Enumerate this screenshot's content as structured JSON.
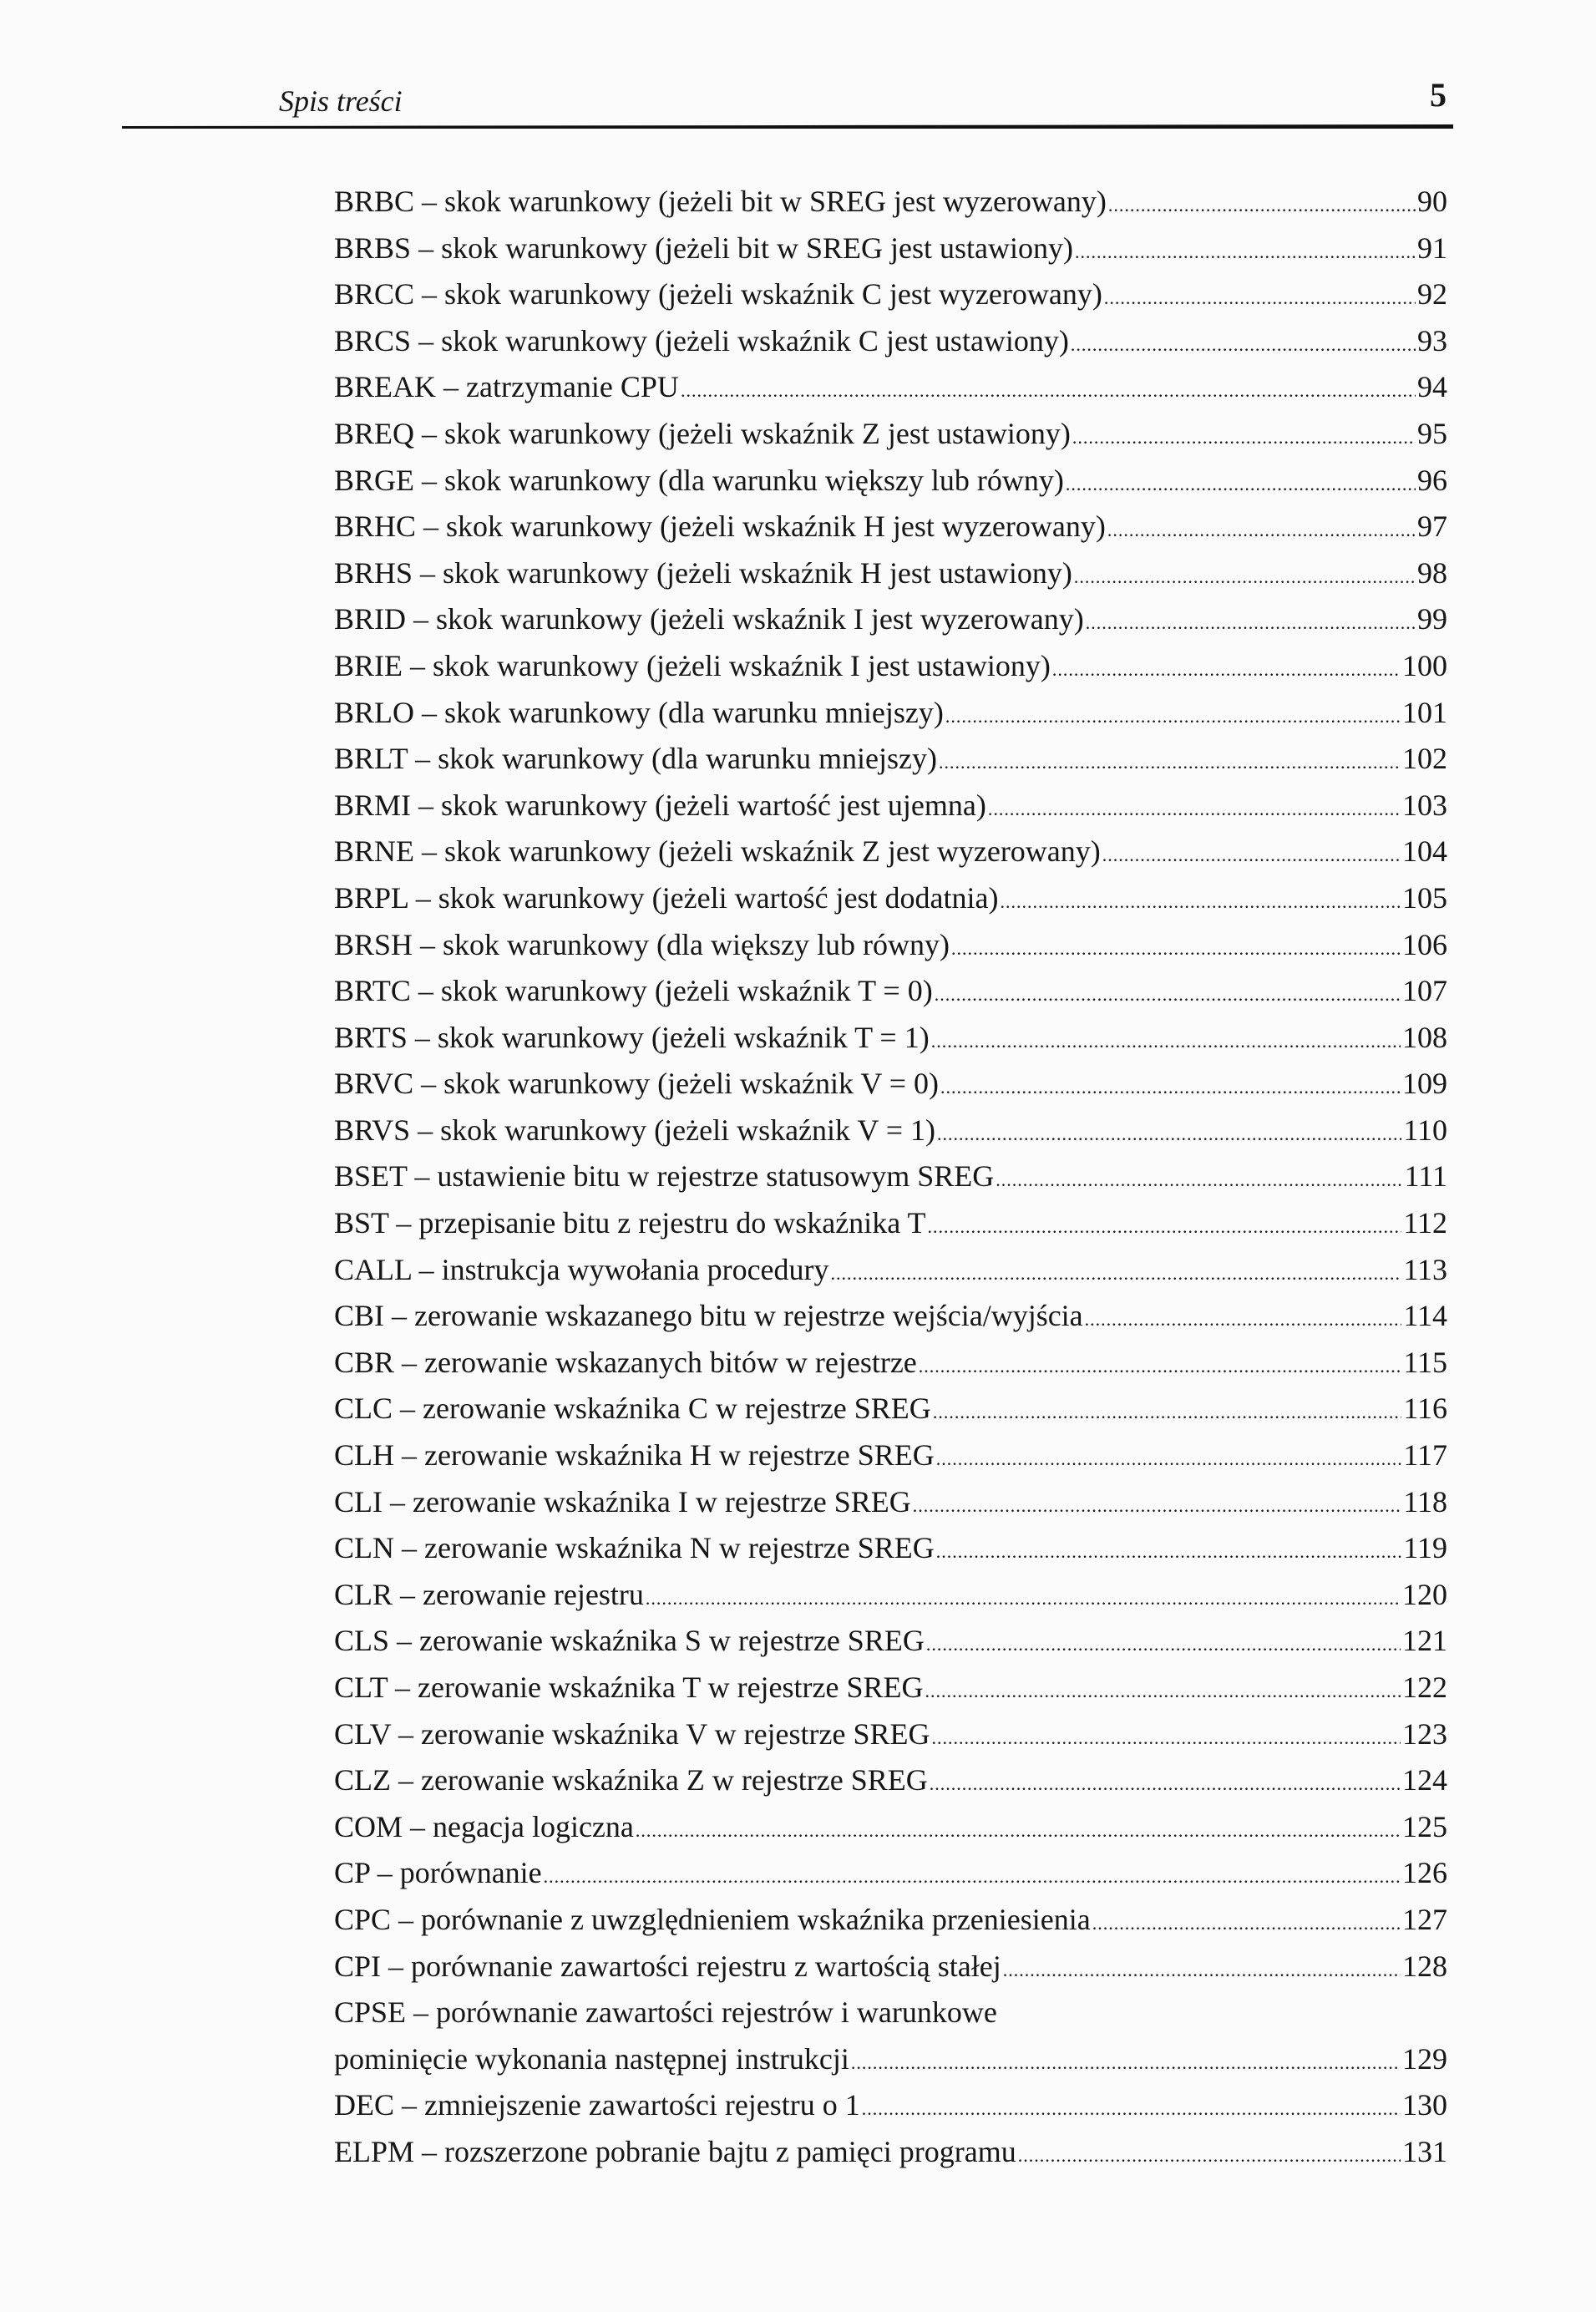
{
  "header": {
    "running_title": "Spis treści",
    "page_number": "5"
  },
  "toc": [
    {
      "code": "BRBC",
      "desc": "skok warunkowy (jeżeli bit w SREG jest wyzerowany)",
      "page": "90"
    },
    {
      "code": "BRBS",
      "desc": "skok warunkowy (jeżeli bit w SREG jest ustawiony)",
      "page": "91"
    },
    {
      "code": "BRCC",
      "desc": "skok warunkowy (jeżeli wskaźnik C jest wyzerowany)",
      "page": "92"
    },
    {
      "code": "BRCS",
      "desc": "skok warunkowy (jeżeli wskaźnik C jest ustawiony)",
      "page": "93"
    },
    {
      "code": "BREAK",
      "desc": "zatrzymanie CPU",
      "page": "94"
    },
    {
      "code": "BREQ",
      "desc": "skok warunkowy (jeżeli wskaźnik Z jest ustawiony)",
      "page": "95"
    },
    {
      "code": "BRGE",
      "desc": "skok warunkowy (dla warunku większy lub równy)",
      "page": "96"
    },
    {
      "code": "BRHC",
      "desc": "skok warunkowy (jeżeli wskaźnik H jest wyzerowany)",
      "page": "97"
    },
    {
      "code": "BRHS",
      "desc": "skok warunkowy (jeżeli wskaźnik H jest ustawiony)",
      "page": "98"
    },
    {
      "code": "BRID",
      "desc": "skok warunkowy (jeżeli wskaźnik I jest wyzerowany)",
      "page": "99"
    },
    {
      "code": "BRIE",
      "desc": "skok warunkowy (jeżeli wskaźnik I jest ustawiony)",
      "page": "100"
    },
    {
      "code": "BRLO",
      "desc": "skok warunkowy (dla warunku mniejszy)",
      "page": "101"
    },
    {
      "code": "BRLT",
      "desc": "skok warunkowy (dla warunku mniejszy)",
      "page": "102"
    },
    {
      "code": "BRMI",
      "desc": "skok warunkowy (jeżeli wartość jest ujemna)",
      "page": "103"
    },
    {
      "code": "BRNE",
      "desc": "skok warunkowy (jeżeli wskaźnik Z jest wyzerowany)",
      "page": "104"
    },
    {
      "code": "BRPL",
      "desc": "skok warunkowy (jeżeli wartość jest dodatnia)",
      "page": "105"
    },
    {
      "code": "BRSH",
      "desc": "skok warunkowy (dla większy lub równy)",
      "page": "106"
    },
    {
      "code": "BRTC",
      "desc": "skok warunkowy (jeżeli wskaźnik T = 0)",
      "page": "107"
    },
    {
      "code": "BRTS",
      "desc": "skok warunkowy (jeżeli wskaźnik T = 1)",
      "page": "108"
    },
    {
      "code": "BRVC",
      "desc": "skok warunkowy (jeżeli wskaźnik V = 0)",
      "page": "109"
    },
    {
      "code": "BRVS",
      "desc": "skok warunkowy (jeżeli wskaźnik V = 1)",
      "page": "110"
    },
    {
      "code": "BSET",
      "desc": "ustawienie bitu w rejestrze statusowym SREG",
      "page": "111"
    },
    {
      "code": "BST",
      "desc": "przepisanie bitu z rejestru do wskaźnika T",
      "page": "112"
    },
    {
      "code": "CALL",
      "desc": "instrukcja wywołania procedury",
      "page": "113"
    },
    {
      "code": "CBI",
      "desc": "zerowanie wskazanego bitu w rejestrze wejścia/wyjścia",
      "page": "114"
    },
    {
      "code": "CBR",
      "desc": "zerowanie wskazanych bitów w rejestrze",
      "page": "115"
    },
    {
      "code": "CLC",
      "desc": "zerowanie wskaźnika C w rejestrze SREG",
      "page": "116"
    },
    {
      "code": "CLH",
      "desc": "zerowanie wskaźnika H w rejestrze SREG",
      "page": "117"
    },
    {
      "code": "CLI",
      "desc": "zerowanie wskaźnika I w rejestrze SREG",
      "page": "118"
    },
    {
      "code": "CLN",
      "desc": "zerowanie wskaźnika N w rejestrze SREG",
      "page": "119"
    },
    {
      "code": "CLR",
      "desc": "zerowanie rejestru",
      "page": "120"
    },
    {
      "code": "CLS",
      "desc": "zerowanie wskaźnika S w rejestrze SREG",
      "page": "121"
    },
    {
      "code": "CLT",
      "desc": "zerowanie wskaźnika T w rejestrze SREG",
      "page": "122"
    },
    {
      "code": "CLV",
      "desc": "zerowanie wskaźnika V w rejestrze SREG",
      "page": "123"
    },
    {
      "code": "CLZ",
      "desc": "zerowanie wskaźnika Z w rejestrze SREG",
      "page": "124"
    },
    {
      "code": "COM",
      "desc": "negacja logiczna",
      "page": "125"
    },
    {
      "code": "CP",
      "desc": "porównanie",
      "page": "126"
    },
    {
      "code": "CPC",
      "desc": "porównanie z uwzględnieniem wskaźnika przeniesienia",
      "page": "127"
    },
    {
      "code": "CPI",
      "desc": "porównanie zawartości rejestru z wartością stałej",
      "page": "128"
    },
    {
      "code": "CPSE",
      "desc": "porównanie zawartości rejestrów i warunkowe",
      "desc_cont": "pominięcie wykonania następnej instrukcji",
      "page": "129"
    },
    {
      "code": "DEC",
      "desc": "zmniejszenie zawartości rejestru o 1",
      "page": "130"
    },
    {
      "code": "ELPM",
      "desc": "rozszerzone pobranie bajtu z pamięci programu",
      "page": "131"
    }
  ]
}
